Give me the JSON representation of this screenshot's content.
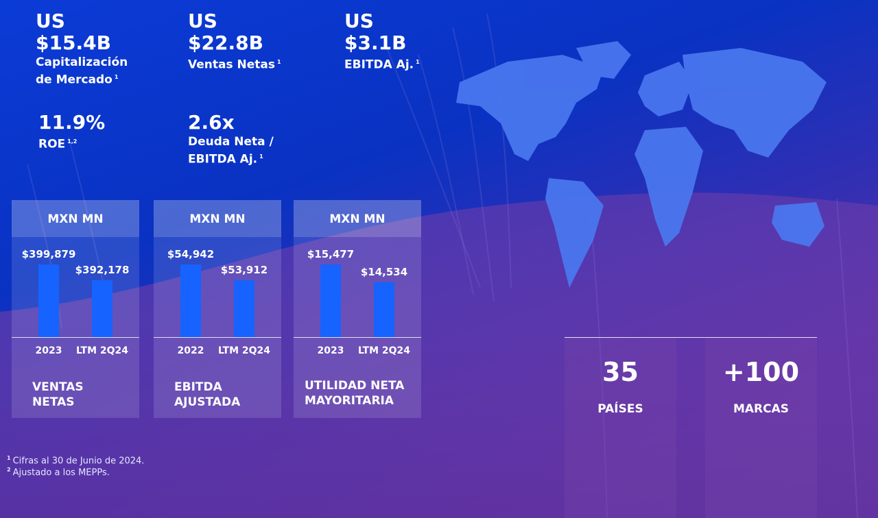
{
  "kpis": [
    {
      "currency": "US",
      "value": "$15.4B",
      "label_line1": "Capitalización",
      "label_line2": "de Mercado",
      "sup": "1"
    },
    {
      "currency": "US",
      "value": "$22.8B",
      "label_line1": "Ventas Netas",
      "label_line2": "",
      "sup": "1"
    },
    {
      "currency": "US",
      "value": "$3.1B",
      "label_line1": "EBITDA Aj.",
      "label_line2": "",
      "sup": "1"
    }
  ],
  "ratios": [
    {
      "value": "11.9%",
      "label_line1": "ROE",
      "label_line2": "",
      "sup": "1,2"
    },
    {
      "value": "2.6x",
      "label_line1": "Deuda Neta /",
      "label_line2": "EBITDA Aj.",
      "sup": "1"
    }
  ],
  "chart_data": [
    {
      "type": "bar",
      "header": "MXN MN",
      "categories": [
        "2023",
        "LTM 2Q24"
      ],
      "values": [
        399879,
        392178
      ],
      "value_labels": [
        "$399,879",
        "$392,178"
      ],
      "title": "VENTAS\nNETAS"
    },
    {
      "type": "bar",
      "header": "MXN MN",
      "categories": [
        "2022",
        "LTM 2Q24"
      ],
      "values": [
        54942,
        53912
      ],
      "value_labels": [
        "$54,942",
        "$53,912"
      ],
      "title": "EBITDA\nAJUSTADA"
    },
    {
      "type": "bar",
      "header": "MXN MN",
      "categories": [
        "2023",
        "LTM 2Q24"
      ],
      "values": [
        15477,
        14534
      ],
      "value_labels": [
        "$15,477",
        "$14,534"
      ],
      "title": "UTILIDAD NETA\nMAYORITARIA"
    }
  ],
  "stats": [
    {
      "value": "35",
      "label": "PAÍSES"
    },
    {
      "value": "+100",
      "label": "MARCAS"
    }
  ],
  "footnotes": [
    {
      "mark": "1",
      "text": "Cifras al 30 de Junio de 2024."
    },
    {
      "mark": "2",
      "text": "Ajustado a los MEPPs."
    }
  ],
  "colors": {
    "bar": "#1763ff",
    "map": "#4a78f0"
  }
}
